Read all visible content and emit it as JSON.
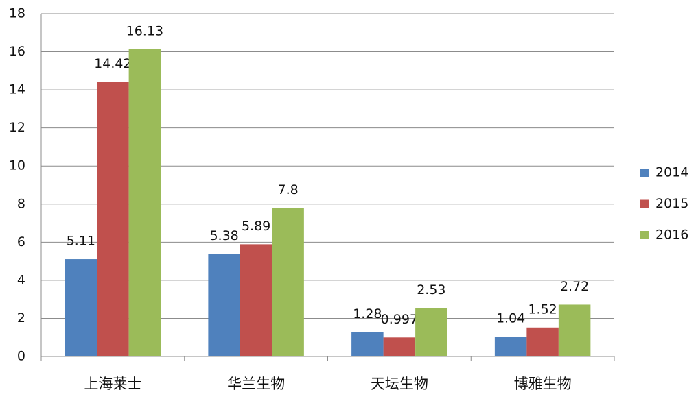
{
  "chart_data": {
    "type": "bar",
    "categories": [
      "上海莱士",
      "华兰生物",
      "天坛生物",
      "博雅生物"
    ],
    "series": [
      {
        "name": "2014",
        "color": "#4f81bd",
        "values": [
          5.11,
          5.38,
          1.28,
          1.04
        ]
      },
      {
        "name": "2015",
        "color": "#c0504d",
        "values": [
          14.42,
          5.89,
          0.997,
          1.52
        ]
      },
      {
        "name": "2016",
        "color": "#9bbb59",
        "values": [
          16.13,
          7.8,
          2.53,
          2.72
        ]
      }
    ],
    "ylim": [
      0,
      18
    ],
    "yticks": [
      0,
      2,
      4,
      6,
      8,
      10,
      12,
      14,
      16,
      18
    ],
    "grid": true,
    "legend": "right"
  }
}
